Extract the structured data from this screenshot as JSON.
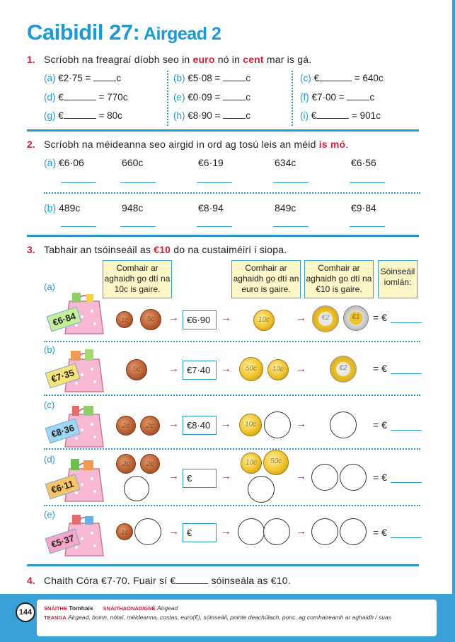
{
  "title": {
    "main": "Caibidil 27:",
    "sub": " Airgead 2"
  },
  "q1": {
    "num": "1.",
    "text_a": "Scríobh na freagraí díobh seo in ",
    "word_euro": "euro",
    "text_b": " nó in ",
    "word_cent": "cent",
    "text_c": " mar is gá.",
    "items": [
      {
        "label": "(a)",
        "pre": "€2·75 = ",
        "post": "c"
      },
      {
        "label": "(b)",
        "pre": "€5·08 = ",
        "post": "c"
      },
      {
        "label": "(c)",
        "pre": "€",
        "post": " = 640c"
      },
      {
        "label": "(d)",
        "pre": "€",
        "post": " = 770c"
      },
      {
        "label": "(e)",
        "pre": "€0·09 = ",
        "post": "c"
      },
      {
        "label": "(f)",
        "pre": "€7·00 = ",
        "post": "c"
      },
      {
        "label": "(g)",
        "pre": "€",
        "post": " = 80c"
      },
      {
        "label": "(h)",
        "pre": "€8·90 = ",
        "post": "c"
      },
      {
        "label": "(i)",
        "pre": "€",
        "post": " = 901c"
      }
    ]
  },
  "q2": {
    "num": "2.",
    "text_a": "Scríobh na méideanna seo airgid in ord ag tosú leis an méid ",
    "word_mo": "is mó",
    "text_b": ".",
    "row_a": {
      "label": "(a)",
      "values": [
        "€6·06",
        "660c",
        "€6·19",
        "634c",
        "€6·56"
      ]
    },
    "row_b": {
      "label": "(b)",
      "values": [
        "489c",
        "948c",
        "€8·94",
        "849c",
        "€9·84"
      ]
    }
  },
  "q3": {
    "num": "3.",
    "text_a": "Tabhair an tsóinseáil as ",
    "word_amount": "€10",
    "text_b": " do na custaiméirí i siopa.",
    "notes": [
      "Comhair ar aghaidh go dtí na 10c is gaire.",
      "Comhair ar aghaidh go dtí an euro is gaire.",
      "Comhair ar aghaidh go dtí na €10 is gaire.",
      "Sóinseáil iomlán:"
    ],
    "rows": [
      {
        "label": "(a)",
        "price": "€6·84",
        "box": "€6·90",
        "coins_a": [
          "1c",
          "5c"
        ],
        "coins_b": [
          "10c"
        ],
        "coins_c": [
          "€2",
          "€1"
        ]
      },
      {
        "label": "(b)",
        "price": "€7·35",
        "box": "€7·40",
        "coins_a": [
          "5c"
        ],
        "coins_b": [
          "50c",
          "10c"
        ],
        "coins_c": [
          "€2"
        ]
      },
      {
        "label": "(c)",
        "price": "€8·36",
        "box": "€8·40",
        "coins_a": [
          "2c",
          "2c"
        ],
        "coins_b": [
          "10c"
        ],
        "coins_c": []
      },
      {
        "label": "(d)",
        "price": "€6·11",
        "box": "€",
        "coins_a": [
          "2c",
          "2c"
        ],
        "coins_b": [
          "10c",
          "50c"
        ],
        "coins_c": []
      },
      {
        "label": "(e)",
        "price": "€5·37",
        "box": "€",
        "coins_a": [
          "1c"
        ],
        "coins_b": [],
        "coins_c": []
      }
    ],
    "equals": "= €"
  },
  "q4": {
    "num": "4.",
    "text_a": "Chaith Córa €7·70. Fuair sí €",
    "text_b": " sóinseála as €10."
  },
  "footer": {
    "page": "144",
    "strand_label": "SNÁITHE",
    "strand": "Tomhais",
    "unit_label": "SNÁITHAONAD/GNÉ",
    "unit": "Airgead",
    "lang_label": "TEANGA",
    "lang_text": "Airgead, boinn, nótaí, méideanna, costas, euro(€), sóinseáil, pointe deachúlach, ponc, ag comhaireamh ar aghaidh / suas"
  },
  "colors": {
    "accent": "#1a9ad6",
    "red": "#d1203a",
    "footer": "#3aa0d8"
  }
}
